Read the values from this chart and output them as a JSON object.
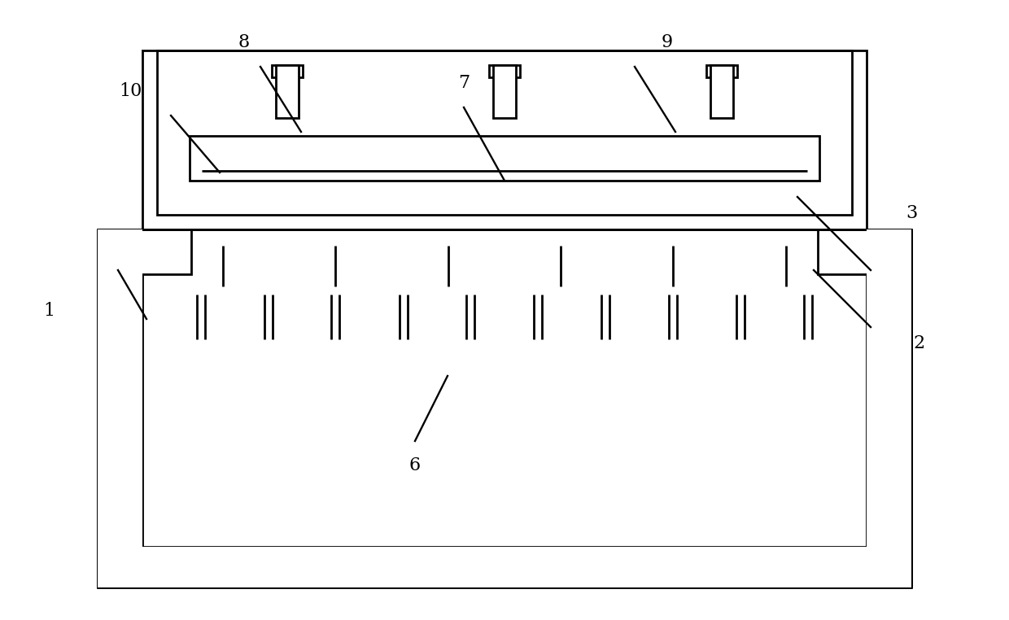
{
  "bg_color": "#ffffff",
  "line_color": "#000000",
  "lw": 2.0,
  "fig_width": 12.4,
  "fig_height": 7.62
}
